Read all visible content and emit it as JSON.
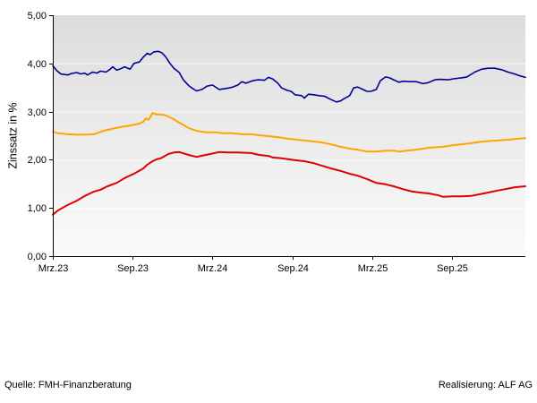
{
  "footer": {
    "source": "Quelle: FMH-Finanzberatung",
    "realization": "Realisierung: ALF AG"
  },
  "chart_data": {
    "type": "line",
    "title": "",
    "xlabel": "",
    "ylabel": "Zinssatz in %",
    "ylim": [
      0,
      5
    ],
    "x_months_range": [
      0,
      35.5
    ],
    "grid": "subtle-white-horizontal",
    "legend": "none",
    "plot_bg_gradient": [
      "#dcdcdc",
      "#fbfbfb"
    ],
    "y_ticks": [
      {
        "value": 5,
        "label": "5,00"
      },
      {
        "value": 4,
        "label": "4,00"
      },
      {
        "value": 3,
        "label": "3,00"
      },
      {
        "value": 2,
        "label": "2,00"
      },
      {
        "value": 1,
        "label": "1,00"
      },
      {
        "value": 0,
        "label": "0,00"
      }
    ],
    "x_ticks": [
      {
        "month": 0,
        "label": "Mrz.23"
      },
      {
        "month": 6,
        "label": "Sep.23"
      },
      {
        "month": 12,
        "label": "Mrz.24"
      },
      {
        "month": 18,
        "label": "Sep.24"
      },
      {
        "month": 24,
        "label": "Mrz.25"
      },
      {
        "month": 30,
        "label": "Sep.25"
      }
    ],
    "series": [
      {
        "name": "blue",
        "color": "#000099",
        "points": [
          [
            0,
            3.95
          ],
          [
            0.3,
            3.85
          ],
          [
            0.6,
            3.78
          ],
          [
            1.1,
            3.76
          ],
          [
            1.4,
            3.79
          ],
          [
            1.8,
            3.81
          ],
          [
            2.1,
            3.78
          ],
          [
            2.4,
            3.8
          ],
          [
            2.6,
            3.76
          ],
          [
            3,
            3.82
          ],
          [
            3.3,
            3.8
          ],
          [
            3.6,
            3.84
          ],
          [
            4,
            3.82
          ],
          [
            4.3,
            3.88
          ],
          [
            4.5,
            3.93
          ],
          [
            4.8,
            3.86
          ],
          [
            5.1,
            3.89
          ],
          [
            5.4,
            3.93
          ],
          [
            5.8,
            3.88
          ],
          [
            6.1,
            4
          ],
          [
            6.5,
            4.03
          ],
          [
            6.8,
            4.13
          ],
          [
            7.1,
            4.21
          ],
          [
            7.3,
            4.18
          ],
          [
            7.6,
            4.24
          ],
          [
            7.9,
            4.25
          ],
          [
            8.2,
            4.22
          ],
          [
            8.5,
            4.13
          ],
          [
            8.8,
            4
          ],
          [
            9.1,
            3.9
          ],
          [
            9.5,
            3.81
          ],
          [
            9.8,
            3.66
          ],
          [
            10.2,
            3.54
          ],
          [
            10.5,
            3.48
          ],
          [
            10.8,
            3.43
          ],
          [
            11.2,
            3.46
          ],
          [
            11.6,
            3.53
          ],
          [
            12,
            3.55
          ],
          [
            12.5,
            3.46
          ],
          [
            13,
            3.48
          ],
          [
            13.4,
            3.5
          ],
          [
            13.9,
            3.55
          ],
          [
            14.2,
            3.62
          ],
          [
            14.5,
            3.59
          ],
          [
            15,
            3.64
          ],
          [
            15.4,
            3.66
          ],
          [
            15.9,
            3.65
          ],
          [
            16.2,
            3.71
          ],
          [
            16.5,
            3.68
          ],
          [
            16.9,
            3.59
          ],
          [
            17.2,
            3.49
          ],
          [
            17.6,
            3.44
          ],
          [
            17.9,
            3.42
          ],
          [
            18.2,
            3.35
          ],
          [
            18.7,
            3.33
          ],
          [
            18.9,
            3.28
          ],
          [
            19.2,
            3.36
          ],
          [
            19.6,
            3.35
          ],
          [
            20,
            3.33
          ],
          [
            20.4,
            3.32
          ],
          [
            20.9,
            3.25
          ],
          [
            21.3,
            3.2
          ],
          [
            21.6,
            3.22
          ],
          [
            21.9,
            3.27
          ],
          [
            22.3,
            3.33
          ],
          [
            22.6,
            3.49
          ],
          [
            22.9,
            3.51
          ],
          [
            23.3,
            3.46
          ],
          [
            23.6,
            3.42
          ],
          [
            23.9,
            3.42
          ],
          [
            24.3,
            3.46
          ],
          [
            24.6,
            3.64
          ],
          [
            25,
            3.72
          ],
          [
            25.3,
            3.7
          ],
          [
            25.6,
            3.66
          ],
          [
            26,
            3.61
          ],
          [
            26.3,
            3.63
          ],
          [
            26.8,
            3.62
          ],
          [
            27.3,
            3.62
          ],
          [
            27.8,
            3.58
          ],
          [
            28.2,
            3.6
          ],
          [
            28.7,
            3.66
          ],
          [
            29.1,
            3.67
          ],
          [
            29.7,
            3.66
          ],
          [
            30.1,
            3.68
          ],
          [
            30.7,
            3.7
          ],
          [
            31.1,
            3.72
          ],
          [
            31.7,
            3.82
          ],
          [
            32.2,
            3.88
          ],
          [
            32.7,
            3.9
          ],
          [
            33.2,
            3.9
          ],
          [
            33.7,
            3.87
          ],
          [
            34.2,
            3.82
          ],
          [
            34.7,
            3.78
          ],
          [
            35,
            3.75
          ],
          [
            35.5,
            3.71
          ]
        ]
      },
      {
        "name": "orange",
        "color": "#ffa500",
        "points": [
          [
            0,
            2.58
          ],
          [
            0.4,
            2.55
          ],
          [
            1.1,
            2.53
          ],
          [
            1.8,
            2.52
          ],
          [
            2.4,
            2.52
          ],
          [
            3.1,
            2.53
          ],
          [
            3.8,
            2.6
          ],
          [
            4.4,
            2.64
          ],
          [
            5.1,
            2.68
          ],
          [
            5.8,
            2.71
          ],
          [
            6.5,
            2.75
          ],
          [
            6.8,
            2.79
          ],
          [
            7,
            2.86
          ],
          [
            7.2,
            2.83
          ],
          [
            7.5,
            2.97
          ],
          [
            7.8,
            2.94
          ],
          [
            8.1,
            2.94
          ],
          [
            8.5,
            2.92
          ],
          [
            8.8,
            2.88
          ],
          [
            9.1,
            2.84
          ],
          [
            9.5,
            2.77
          ],
          [
            10.2,
            2.66
          ],
          [
            10.8,
            2.6
          ],
          [
            11.5,
            2.57
          ],
          [
            12.2,
            2.57
          ],
          [
            12.8,
            2.55
          ],
          [
            13.5,
            2.55
          ],
          [
            14.2,
            2.53
          ],
          [
            14.9,
            2.53
          ],
          [
            15.5,
            2.51
          ],
          [
            16.2,
            2.49
          ],
          [
            16.9,
            2.47
          ],
          [
            17.6,
            2.44
          ],
          [
            18.2,
            2.42
          ],
          [
            18.9,
            2.4
          ],
          [
            19.6,
            2.38
          ],
          [
            20.2,
            2.36
          ],
          [
            20.9,
            2.32
          ],
          [
            21.6,
            2.27
          ],
          [
            22.3,
            2.23
          ],
          [
            22.9,
            2.21
          ],
          [
            23.6,
            2.17
          ],
          [
            24.3,
            2.17
          ],
          [
            25,
            2.19
          ],
          [
            25.6,
            2.19
          ],
          [
            26,
            2.17
          ],
          [
            26.6,
            2.19
          ],
          [
            27.3,
            2.21
          ],
          [
            28.3,
            2.25
          ],
          [
            29.3,
            2.27
          ],
          [
            30.3,
            2.31
          ],
          [
            31.3,
            2.34
          ],
          [
            32.3,
            2.38
          ],
          [
            33.4,
            2.4
          ],
          [
            34.4,
            2.42
          ],
          [
            35,
            2.44
          ],
          [
            35.5,
            2.45
          ]
        ]
      },
      {
        "name": "red",
        "color": "#e00000",
        "points": [
          [
            0,
            0.86
          ],
          [
            0.4,
            0.95
          ],
          [
            1.1,
            1.06
          ],
          [
            1.8,
            1.15
          ],
          [
            2.4,
            1.25
          ],
          [
            3.1,
            1.34
          ],
          [
            3.6,
            1.38
          ],
          [
            4.1,
            1.45
          ],
          [
            4.8,
            1.52
          ],
          [
            5.4,
            1.62
          ],
          [
            6.1,
            1.71
          ],
          [
            6.8,
            1.82
          ],
          [
            7.1,
            1.9
          ],
          [
            7.5,
            1.97
          ],
          [
            7.8,
            2.01
          ],
          [
            8.1,
            2.03
          ],
          [
            8.7,
            2.12
          ],
          [
            9.1,
            2.15
          ],
          [
            9.5,
            2.16
          ],
          [
            10.2,
            2.1
          ],
          [
            10.8,
            2.06
          ],
          [
            11.5,
            2.1
          ],
          [
            12.5,
            2.16
          ],
          [
            13.2,
            2.15
          ],
          [
            13.9,
            2.15
          ],
          [
            14.9,
            2.14
          ],
          [
            15.5,
            2.1
          ],
          [
            16.2,
            2.08
          ],
          [
            16.5,
            2.05
          ],
          [
            17.2,
            2.03
          ],
          [
            18.2,
            1.99
          ],
          [
            18.9,
            1.97
          ],
          [
            19.6,
            1.93
          ],
          [
            20.2,
            1.88
          ],
          [
            20.9,
            1.82
          ],
          [
            21.6,
            1.77
          ],
          [
            22.3,
            1.71
          ],
          [
            22.9,
            1.67
          ],
          [
            23.6,
            1.6
          ],
          [
            24.3,
            1.52
          ],
          [
            25,
            1.49
          ],
          [
            25.6,
            1.45
          ],
          [
            26.3,
            1.39
          ],
          [
            27,
            1.34
          ],
          [
            27.6,
            1.32
          ],
          [
            28.3,
            1.3
          ],
          [
            29,
            1.26
          ],
          [
            29.3,
            1.23
          ],
          [
            30,
            1.24
          ],
          [
            30.7,
            1.24
          ],
          [
            31.4,
            1.25
          ],
          [
            32,
            1.28
          ],
          [
            32.7,
            1.32
          ],
          [
            33.4,
            1.36
          ],
          [
            34,
            1.39
          ],
          [
            34.7,
            1.43
          ],
          [
            35.5,
            1.45
          ]
        ]
      }
    ]
  }
}
